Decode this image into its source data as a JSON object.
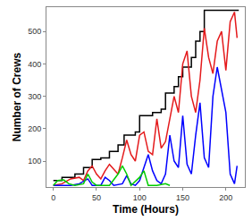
{
  "chart_data": {
    "type": "line",
    "xlabel": "Time (Hours)",
    "ylabel": "Number of Crews",
    "xlim": [
      -8,
      222
    ],
    "ylim": [
      20,
      575
    ],
    "xticks": [
      0,
      50,
      100,
      150,
      200
    ],
    "yticks": [
      100,
      200,
      300,
      400,
      500
    ],
    "grid": false,
    "series": [
      {
        "color": "#000000",
        "line_style": "step",
        "x": [
          0,
          10,
          25,
          35,
          45,
          55,
          65,
          75,
          82,
          95,
          100,
          115,
          125,
          130,
          140,
          145,
          150,
          160,
          165,
          170,
          175,
          215
        ],
        "values": [
          40,
          50,
          60,
          80,
          105,
          110,
          130,
          150,
          180,
          190,
          240,
          250,
          260,
          310,
          330,
          360,
          390,
          420,
          470,
          500,
          565,
          565
        ]
      },
      {
        "color": "#e41a1c",
        "line_style": "solid",
        "x": [
          0,
          10,
          20,
          30,
          35,
          40,
          45,
          50,
          55,
          60,
          65,
          70,
          75,
          80,
          85,
          90,
          95,
          100,
          105,
          110,
          115,
          120,
          125,
          130,
          135,
          140,
          145,
          150,
          155,
          160,
          165,
          170,
          175,
          180,
          185,
          190,
          195,
          200,
          205,
          210,
          213
        ],
        "values": [
          25,
          30,
          45,
          50,
          40,
          70,
          85,
          60,
          45,
          70,
          90,
          75,
          60,
          110,
          165,
          120,
          100,
          180,
          190,
          130,
          120,
          230,
          140,
          160,
          230,
          300,
          250,
          400,
          440,
          300,
          250,
          350,
          510,
          420,
          370,
          470,
          500,
          380,
          530,
          560,
          480
        ]
      },
      {
        "color": "#0000ff",
        "line_style": "solid",
        "x": [
          0,
          20,
          30,
          40,
          45,
          55,
          60,
          65,
          70,
          80,
          85,
          90,
          95,
          100,
          110,
          115,
          120,
          125,
          130,
          135,
          140,
          145,
          150,
          155,
          160,
          165,
          170,
          175,
          180,
          185,
          190,
          195,
          200,
          205,
          210,
          213
        ],
        "values": [
          25,
          25,
          30,
          45,
          25,
          25,
          50,
          40,
          25,
          30,
          55,
          30,
          25,
          40,
          120,
          70,
          40,
          30,
          60,
          180,
          100,
          80,
          240,
          90,
          60,
          180,
          280,
          110,
          80,
          300,
          390,
          320,
          250,
          60,
          30,
          85
        ]
      },
      {
        "color": "#00cc00",
        "line_style": "solid",
        "x": [
          0,
          5,
          12,
          18,
          25,
          35,
          40,
          45,
          50,
          65,
          75,
          80,
          85,
          90,
          100,
          105,
          110,
          120,
          130,
          135
        ],
        "values": [
          25,
          40,
          42,
          30,
          25,
          30,
          60,
          35,
          25,
          25,
          60,
          85,
          60,
          25,
          50,
          70,
          25,
          25,
          30,
          25
        ]
      }
    ]
  }
}
